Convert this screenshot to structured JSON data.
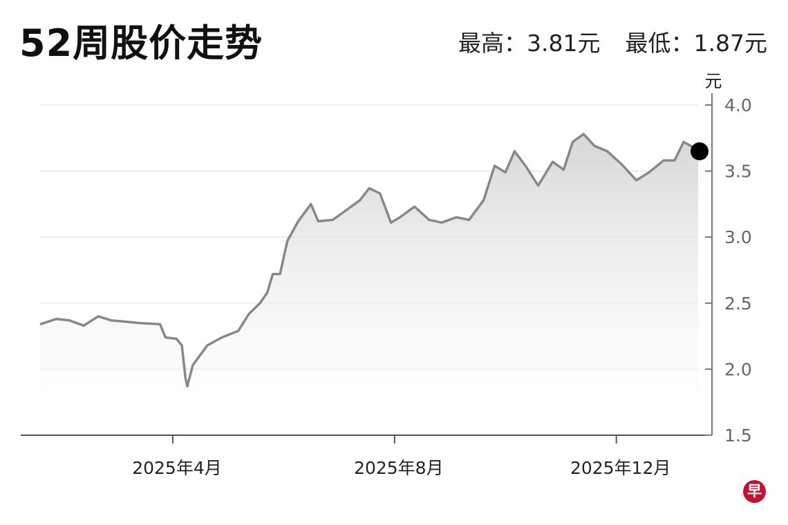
{
  "title": "52周股价走势",
  "high": {
    "label": "最高：3.81元"
  },
  "low": {
    "label": "最低：1.87元"
  },
  "logo_text": "早",
  "colors": {
    "line": "#888888",
    "marker": "#000000",
    "logo": "#c8102e"
  },
  "chart_data": {
    "type": "area",
    "title": "52周股价走势",
    "ylabel": "元",
    "ylim": [
      1.5,
      4.0
    ],
    "yticks": [
      "4.0",
      "3.5",
      "3.0",
      "2.5",
      "2.0",
      "1.5"
    ],
    "xlim": [
      "2025-01-18",
      "2026-01-15"
    ],
    "xticks": [
      {
        "date": "2025-04-01",
        "label": "2025年4月"
      },
      {
        "date": "2025-08-01",
        "label": "2025年8月"
      },
      {
        "date": "2025-12-01",
        "label": "2025年12月"
      }
    ],
    "grid": true,
    "y_axis_position": "right",
    "high": 3.81,
    "low": 1.87,
    "series": [
      {
        "x": [
          "2025-01-18",
          "2025-01-27",
          "2025-02-03",
          "2025-02-11",
          "2025-02-19",
          "2025-02-26",
          "2025-03-06",
          "2025-03-13",
          "2025-03-25",
          "2025-03-28",
          "2025-04-03",
          "2025-04-06",
          "2025-04-08",
          "2025-04-09",
          "2025-04-12",
          "2025-04-20",
          "2025-04-28",
          "2025-05-07",
          "2025-05-13",
          "2025-05-19",
          "2025-05-23",
          "2025-05-26",
          "2025-05-30",
          "2025-06-03",
          "2025-06-09",
          "2025-06-16",
          "2025-06-20",
          "2025-06-28",
          "2025-07-05",
          "2025-07-13",
          "2025-07-18",
          "2025-07-24",
          "2025-07-30",
          "2025-08-04",
          "2025-08-12",
          "2025-08-20",
          "2025-08-27",
          "2025-09-04",
          "2025-09-11",
          "2025-09-19",
          "2025-09-25",
          "2025-10-01",
          "2025-10-06",
          "2025-10-12",
          "2025-10-19",
          "2025-10-27",
          "2025-11-02",
          "2025-11-07",
          "2025-11-13",
          "2025-11-19",
          "2025-11-26",
          "2025-12-04",
          "2025-12-12",
          "2025-12-19",
          "2025-12-27",
          "2026-01-02",
          "2026-01-07",
          "2026-01-15"
        ],
        "y": [
          2.34,
          2.38,
          2.37,
          2.33,
          2.4,
          2.37,
          2.36,
          2.35,
          2.34,
          2.24,
          2.23,
          2.18,
          1.93,
          1.87,
          2.03,
          2.18,
          2.24,
          2.29,
          2.42,
          2.5,
          2.58,
          2.72,
          2.72,
          2.97,
          3.12,
          3.25,
          3.12,
          3.13,
          3.2,
          3.28,
          3.37,
          3.33,
          3.11,
          3.15,
          3.23,
          3.13,
          3.11,
          3.15,
          3.13,
          3.28,
          3.54,
          3.49,
          3.65,
          3.54,
          3.39,
          3.57,
          3.51,
          3.72,
          3.78,
          3.69,
          3.65,
          3.55,
          3.43,
          3.49,
          3.58,
          3.58,
          3.72,
          3.66
        ]
      }
    ]
  }
}
